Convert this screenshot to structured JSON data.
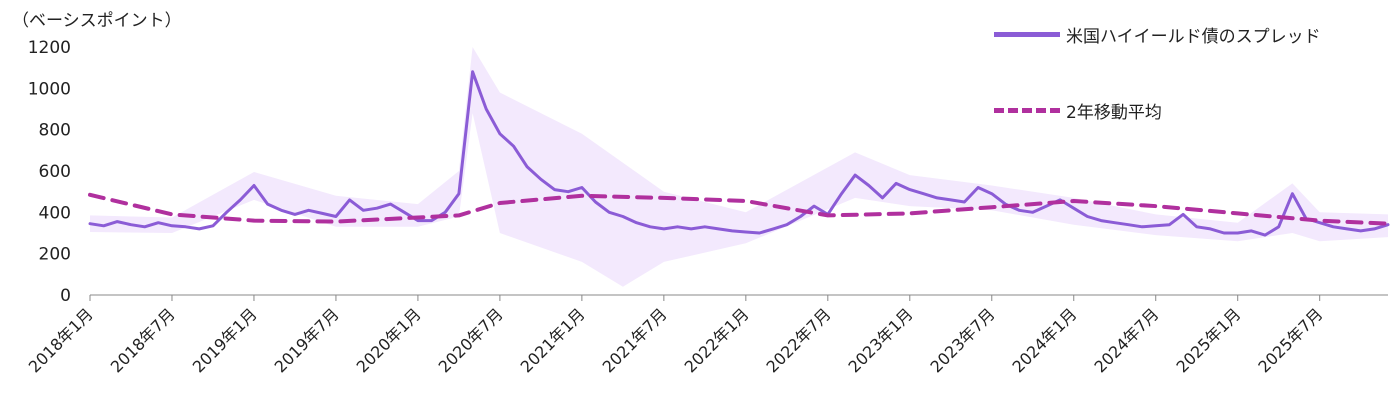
{
  "chart_data": {
    "type": "line",
    "unit_label": "（ベーシスポイント）",
    "ylim": [
      0,
      1200
    ],
    "yticks": [
      0,
      200,
      400,
      600,
      800,
      1000,
      1200
    ],
    "x_start": "2018-01",
    "x_end": "2025-12",
    "xticks": [
      {
        "date": "2018-01",
        "label": "2018年1月"
      },
      {
        "date": "2018-07",
        "label": "2018年7月"
      },
      {
        "date": "2019-01",
        "label": "2019年1月"
      },
      {
        "date": "2019-07",
        "label": "2019年7月"
      },
      {
        "date": "2020-01",
        "label": "2020年1月"
      },
      {
        "date": "2020-07",
        "label": "2020年7月"
      },
      {
        "date": "2021-01",
        "label": "2021年1月"
      },
      {
        "date": "2021-07",
        "label": "2021年7月"
      },
      {
        "date": "2022-01",
        "label": "2022年1月"
      },
      {
        "date": "2022-07",
        "label": "2022年7月"
      },
      {
        "date": "2023-01",
        "label": "2023年1月"
      },
      {
        "date": "2023-07",
        "label": "2023年7月"
      },
      {
        "date": "2024-01",
        "label": "2024年1月"
      },
      {
        "date": "2024-07",
        "label": "2024年7月"
      },
      {
        "date": "2025-01",
        "label": "2025年1月"
      },
      {
        "date": "2025-07",
        "label": "2025年7月"
      }
    ],
    "series": [
      {
        "name": "米国ハイイールド債のスプレッド",
        "color": "#8b5cd6",
        "style": "solid",
        "points": [
          [
            "2018-01",
            345
          ],
          [
            "2018-02",
            335
          ],
          [
            "2018-03",
            355
          ],
          [
            "2018-04",
            340
          ],
          [
            "2018-05",
            330
          ],
          [
            "2018-06",
            350
          ],
          [
            "2018-07",
            335
          ],
          [
            "2018-08",
            330
          ],
          [
            "2018-09",
            320
          ],
          [
            "2018-10",
            335
          ],
          [
            "2018-11",
            400
          ],
          [
            "2018-12",
            460
          ],
          [
            "2019-01",
            530
          ],
          [
            "2019-02",
            440
          ],
          [
            "2019-03",
            410
          ],
          [
            "2019-04",
            390
          ],
          [
            "2019-05",
            410
          ],
          [
            "2019-06",
            395
          ],
          [
            "2019-07",
            380
          ],
          [
            "2019-08",
            460
          ],
          [
            "2019-09",
            410
          ],
          [
            "2019-10",
            420
          ],
          [
            "2019-11",
            440
          ],
          [
            "2019-12",
            400
          ],
          [
            "2020-01",
            360
          ],
          [
            "2020-02",
            360
          ],
          [
            "2020-03",
            400
          ],
          [
            "2020-04",
            490
          ],
          [
            "2020-05",
            1080
          ],
          [
            "2020-06",
            900
          ],
          [
            "2020-07",
            780
          ],
          [
            "2020-08",
            720
          ],
          [
            "2020-09",
            620
          ],
          [
            "2020-10",
            560
          ],
          [
            "2020-11",
            510
          ],
          [
            "2020-12",
            500
          ],
          [
            "2021-01",
            520
          ],
          [
            "2021-02",
            450
          ],
          [
            "2021-03",
            400
          ],
          [
            "2021-04",
            380
          ],
          [
            "2021-05",
            350
          ],
          [
            "2021-06",
            330
          ],
          [
            "2021-07",
            320
          ],
          [
            "2021-08",
            330
          ],
          [
            "2021-09",
            320
          ],
          [
            "2021-10",
            330
          ],
          [
            "2021-11",
            320
          ],
          [
            "2021-12",
            310
          ],
          [
            "2022-01",
            305
          ],
          [
            "2022-02",
            300
          ],
          [
            "2022-03",
            320
          ],
          [
            "2022-04",
            340
          ],
          [
            "2022-05",
            380
          ],
          [
            "2022-06",
            430
          ],
          [
            "2022-07",
            390
          ],
          [
            "2022-08",
            490
          ],
          [
            "2022-09",
            580
          ],
          [
            "2022-10",
            530
          ],
          [
            "2022-11",
            470
          ],
          [
            "2022-12",
            540
          ],
          [
            "2023-01",
            510
          ],
          [
            "2023-02",
            490
          ],
          [
            "2023-03",
            470
          ],
          [
            "2023-04",
            460
          ],
          [
            "2023-05",
            450
          ],
          [
            "2023-06",
            520
          ],
          [
            "2023-07",
            490
          ],
          [
            "2023-08",
            440
          ],
          [
            "2023-09",
            410
          ],
          [
            "2023-10",
            400
          ],
          [
            "2023-11",
            430
          ],
          [
            "2023-12",
            460
          ],
          [
            "2024-01",
            420
          ],
          [
            "2024-02",
            380
          ],
          [
            "2024-03",
            360
          ],
          [
            "2024-04",
            350
          ],
          [
            "2024-05",
            340
          ],
          [
            "2024-06",
            330
          ],
          [
            "2024-07",
            335
          ],
          [
            "2024-08",
            340
          ],
          [
            "2024-09",
            390
          ],
          [
            "2024-10",
            330
          ],
          [
            "2024-11",
            320
          ],
          [
            "2024-12",
            300
          ],
          [
            "2025-01",
            300
          ],
          [
            "2025-02",
            310
          ],
          [
            "2025-03",
            290
          ],
          [
            "2025-04",
            330
          ],
          [
            "2025-05",
            490
          ],
          [
            "2025-06",
            370
          ],
          [
            "2025-07",
            350
          ],
          [
            "2025-08",
            330
          ],
          [
            "2025-09",
            320
          ],
          [
            "2025-10",
            310
          ],
          [
            "2025-11",
            320
          ],
          [
            "2025-12",
            340
          ]
        ]
      },
      {
        "name": "2年移動平均",
        "color": "#b0309e",
        "style": "dashed",
        "points": [
          [
            "2018-01",
            485
          ],
          [
            "2018-07",
            390
          ],
          [
            "2019-01",
            360
          ],
          [
            "2019-07",
            355
          ],
          [
            "2020-01",
            375
          ],
          [
            "2020-04",
            385
          ],
          [
            "2020-07",
            445
          ],
          [
            "2021-01",
            480
          ],
          [
            "2021-07",
            470
          ],
          [
            "2022-01",
            455
          ],
          [
            "2022-07",
            385
          ],
          [
            "2023-01",
            395
          ],
          [
            "2023-07",
            425
          ],
          [
            "2024-01",
            455
          ],
          [
            "2024-07",
            430
          ],
          [
            "2025-01",
            395
          ],
          [
            "2025-07",
            360
          ],
          [
            "2025-12",
            345
          ]
        ]
      }
    ],
    "band": {
      "color": "#f3e9fd",
      "upper": [
        [
          "2018-01",
          385
        ],
        [
          "2018-07",
          375
        ],
        [
          "2019-01",
          595
        ],
        [
          "2019-07",
          480
        ],
        [
          "2020-01",
          440
        ],
        [
          "2020-04",
          600
        ],
        [
          "2020-05",
          1200
        ],
        [
          "2020-07",
          980
        ],
        [
          "2021-01",
          780
        ],
        [
          "2021-07",
          500
        ],
        [
          "2022-01",
          400
        ],
        [
          "2022-09",
          690
        ],
        [
          "2023-01",
          580
        ],
        [
          "2023-07",
          530
        ],
        [
          "2024-01",
          470
        ],
        [
          "2024-07",
          390
        ],
        [
          "2025-01",
          350
        ],
        [
          "2025-05",
          540
        ],
        [
          "2025-07",
          400
        ],
        [
          "2025-12",
          390
        ]
      ],
      "lower": [
        [
          "2018-01",
          305
        ],
        [
          "2018-07",
          300
        ],
        [
          "2019-01",
          460
        ],
        [
          "2019-07",
          330
        ],
        [
          "2020-01",
          330
        ],
        [
          "2020-04",
          380
        ],
        [
          "2020-05",
          880
        ],
        [
          "2020-07",
          300
        ],
        [
          "2021-01",
          160
        ],
        [
          "2021-04",
          40
        ],
        [
          "2021-07",
          160
        ],
        [
          "2022-01",
          250
        ],
        [
          "2022-09",
          470
        ],
        [
          "2023-01",
          430
        ],
        [
          "2023-07",
          410
        ],
        [
          "2024-01",
          340
        ],
        [
          "2024-07",
          290
        ],
        [
          "2025-01",
          260
        ],
        [
          "2025-05",
          300
        ],
        [
          "2025-07",
          260
        ],
        [
          "2025-12",
          280
        ]
      ]
    }
  }
}
